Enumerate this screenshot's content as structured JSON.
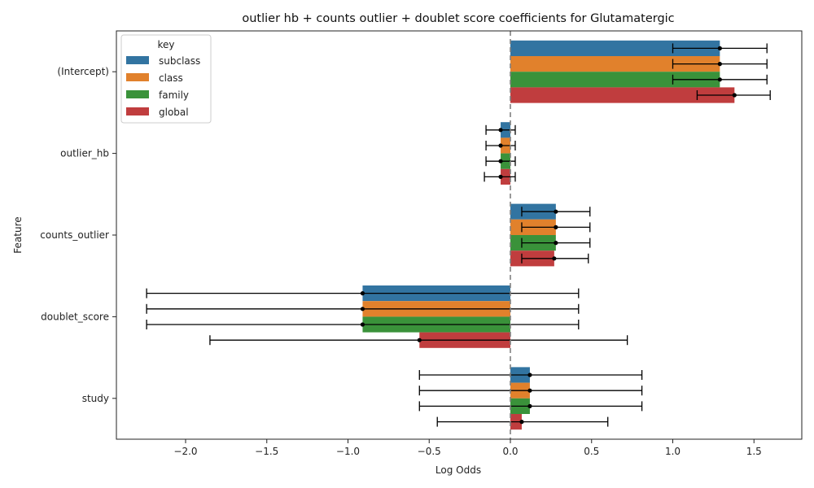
{
  "chart_data": {
    "type": "bar",
    "orientation": "horizontal",
    "title": "outlier hb + counts outlier + doublet score coefficients for Glutamatergic",
    "xlabel": "Log Odds",
    "ylabel": "Feature",
    "xlim": [
      -2.43,
      1.79
    ],
    "xticks": [
      -2.0,
      -1.5,
      -1.0,
      -0.5,
      0.0,
      0.5,
      1.0,
      1.5
    ],
    "xtick_labels": [
      "−2.0",
      "−1.5",
      "−1.0",
      "−0.5",
      "0.0",
      "0.5",
      "1.0",
      "1.5"
    ],
    "reference_line": 0.0,
    "categories": [
      "(Intercept)",
      "outlier_hb",
      "counts_outlier",
      "doublet_score",
      "study"
    ],
    "legend": {
      "title": "key",
      "position": "top-left"
    },
    "series": [
      {
        "name": "subclass",
        "color": "#3274a1",
        "values": [
          1.29,
          -0.06,
          0.28,
          -0.91,
          0.12
        ],
        "ci_low": [
          1.0,
          -0.15,
          0.07,
          -2.24,
          -0.56
        ],
        "ci_high": [
          1.58,
          0.03,
          0.49,
          0.42,
          0.81
        ]
      },
      {
        "name": "class",
        "color": "#e1812c",
        "values": [
          1.29,
          -0.06,
          0.28,
          -0.91,
          0.12
        ],
        "ci_low": [
          1.0,
          -0.15,
          0.07,
          -2.24,
          -0.56
        ],
        "ci_high": [
          1.58,
          0.03,
          0.49,
          0.42,
          0.81
        ]
      },
      {
        "name": "family",
        "color": "#3a923a",
        "values": [
          1.29,
          -0.06,
          0.28,
          -0.91,
          0.12
        ],
        "ci_low": [
          1.0,
          -0.15,
          0.07,
          -2.24,
          -0.56
        ],
        "ci_high": [
          1.58,
          0.03,
          0.49,
          0.42,
          0.81
        ]
      },
      {
        "name": "global",
        "color": "#c03d3e",
        "values": [
          1.38,
          -0.06,
          0.27,
          -0.56,
          0.07
        ],
        "ci_low": [
          1.15,
          -0.16,
          0.07,
          -1.85,
          -0.45
        ],
        "ci_high": [
          1.6,
          0.03,
          0.48,
          0.72,
          0.6
        ]
      }
    ]
  }
}
